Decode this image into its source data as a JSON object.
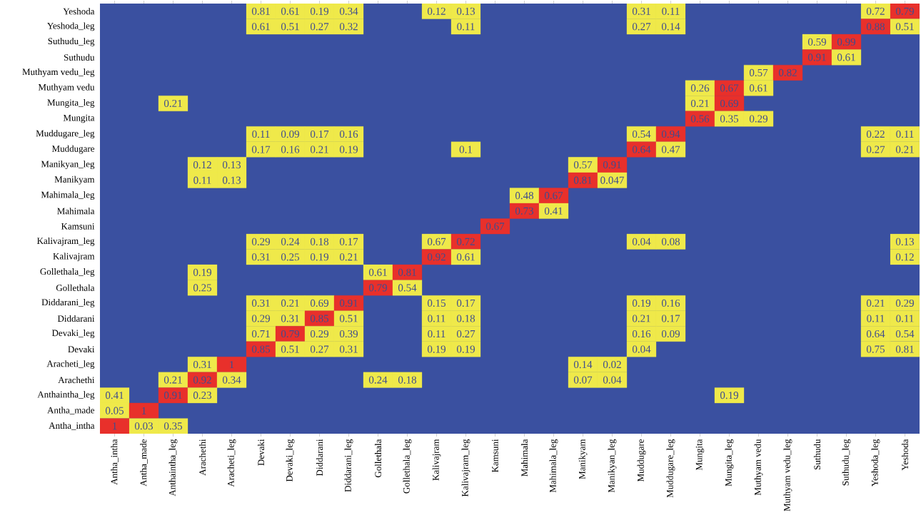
{
  "chart_data": {
    "type": "heatmap",
    "categories": [
      "Antha_intha",
      "Antha_made",
      "Anthaintha_leg",
      "Arachethi",
      "Aracheti_leg",
      "Devaki",
      "Devaki_leg",
      "Diddarani",
      "Diddarani_leg",
      "Gollethala",
      "Gollethala_leg",
      "Kalivajram",
      "Kalivajram_leg",
      "Kamsuni",
      "Mahimala",
      "Mahimala_leg",
      "Manikyam",
      "Manikyan_leg",
      "Muddugare",
      "Muddugare_leg",
      "Mungita",
      "Mungita_leg",
      "Muthyam vedu",
      "Muthyam vedu_leg",
      "Suthudu",
      "Suthudu_leg",
      "Yeshoda_leg",
      "Yeshoda"
    ],
    "y_categories": [
      "Yeshoda",
      "Yeshoda_leg",
      "Suthudu_leg",
      "Suthudu",
      "Muthyam vedu_leg",
      "Muthyam vedu",
      "Mungita_leg",
      "Mungita",
      "Muddugare_leg",
      "Muddugare",
      "Manikyan_leg",
      "Manikyam",
      "Mahimala_leg",
      "Mahimala",
      "Kamsuni",
      "Kalivajram_leg",
      "Kalivajram",
      "Gollethala_leg",
      "Gollethala",
      "Diddarani_leg",
      "Diddarani",
      "Devaki_leg",
      "Devaki",
      "Aracheti_leg",
      "Arachethi",
      "Anthaintha_leg",
      "Antha_made",
      "Antha_intha"
    ],
    "cells": [
      [
        null,
        null,
        null,
        null,
        null,
        0.81,
        0.61,
        0.19,
        0.34,
        null,
        null,
        0.12,
        0.13,
        null,
        null,
        null,
        null,
        null,
        0.31,
        0.11,
        null,
        null,
        null,
        null,
        null,
        null,
        0.72,
        0.79
      ],
      [
        null,
        null,
        null,
        null,
        null,
        0.61,
        0.51,
        0.27,
        0.32,
        null,
        null,
        null,
        0.11,
        null,
        null,
        null,
        null,
        null,
        0.27,
        0.14,
        null,
        null,
        null,
        null,
        null,
        null,
        0.88,
        0.51
      ],
      [
        null,
        null,
        null,
        null,
        null,
        null,
        null,
        null,
        null,
        null,
        null,
        null,
        null,
        null,
        null,
        null,
        null,
        null,
        null,
        null,
        null,
        null,
        null,
        null,
        0.59,
        0.99,
        null,
        null
      ],
      [
        null,
        null,
        null,
        null,
        null,
        null,
        null,
        null,
        null,
        null,
        null,
        null,
        null,
        null,
        null,
        null,
        null,
        null,
        null,
        null,
        null,
        null,
        null,
        null,
        0.91,
        0.61,
        null,
        null
      ],
      [
        null,
        null,
        null,
        null,
        null,
        null,
        null,
        null,
        null,
        null,
        null,
        null,
        null,
        null,
        null,
        null,
        null,
        null,
        null,
        null,
        null,
        null,
        0.57,
        0.82,
        null,
        null,
        null,
        null
      ],
      [
        null,
        null,
        null,
        null,
        null,
        null,
        null,
        null,
        null,
        null,
        null,
        null,
        null,
        null,
        null,
        null,
        null,
        null,
        null,
        null,
        0.26,
        0.67,
        0.61,
        null,
        null,
        null,
        null,
        null
      ],
      [
        null,
        null,
        0.21,
        null,
        null,
        null,
        null,
        null,
        null,
        null,
        null,
        null,
        null,
        null,
        null,
        null,
        null,
        null,
        null,
        null,
        0.21,
        0.69,
        null,
        null,
        null,
        null,
        null,
        null
      ],
      [
        null,
        null,
        null,
        null,
        null,
        null,
        null,
        null,
        null,
        null,
        null,
        null,
        null,
        null,
        null,
        null,
        null,
        null,
        null,
        null,
        0.56,
        0.35,
        0.29,
        null,
        null,
        null,
        null,
        null
      ],
      [
        null,
        null,
        null,
        null,
        null,
        0.11,
        0.09,
        0.17,
        0.16,
        null,
        null,
        null,
        null,
        null,
        null,
        null,
        null,
        null,
        0.54,
        0.94,
        null,
        null,
        null,
        null,
        null,
        null,
        0.22,
        0.11
      ],
      [
        null,
        null,
        null,
        null,
        null,
        0.17,
        0.16,
        0.21,
        0.19,
        null,
        null,
        null,
        0.1,
        null,
        null,
        null,
        null,
        null,
        0.64,
        0.47,
        null,
        null,
        null,
        null,
        null,
        null,
        0.27,
        0.21
      ],
      [
        null,
        null,
        null,
        0.12,
        0.13,
        null,
        null,
        null,
        null,
        null,
        null,
        null,
        null,
        null,
        null,
        null,
        0.57,
        0.91,
        null,
        null,
        null,
        null,
        null,
        null,
        null,
        null,
        null,
        null
      ],
      [
        null,
        null,
        null,
        0.11,
        0.13,
        null,
        null,
        null,
        null,
        null,
        null,
        null,
        null,
        null,
        null,
        null,
        0.81,
        0.047,
        null,
        null,
        null,
        null,
        null,
        null,
        null,
        null,
        null,
        null
      ],
      [
        null,
        null,
        null,
        null,
        null,
        null,
        null,
        null,
        null,
        null,
        null,
        null,
        null,
        null,
        0.48,
        0.67,
        null,
        null,
        null,
        null,
        null,
        null,
        null,
        null,
        null,
        null,
        null,
        null
      ],
      [
        null,
        null,
        null,
        null,
        null,
        null,
        null,
        null,
        null,
        null,
        null,
        null,
        null,
        null,
        0.73,
        0.41,
        null,
        null,
        null,
        null,
        null,
        null,
        null,
        null,
        null,
        null,
        null,
        null
      ],
      [
        null,
        null,
        null,
        null,
        null,
        null,
        null,
        null,
        null,
        null,
        null,
        null,
        null,
        0.67,
        null,
        null,
        null,
        null,
        null,
        null,
        null,
        null,
        null,
        null,
        null,
        null,
        null,
        null
      ],
      [
        null,
        null,
        null,
        null,
        null,
        0.29,
        0.24,
        0.18,
        0.17,
        null,
        null,
        0.67,
        0.72,
        null,
        null,
        null,
        null,
        null,
        0.04,
        0.08,
        null,
        null,
        null,
        null,
        null,
        null,
        null,
        0.13
      ],
      [
        null,
        null,
        null,
        null,
        null,
        0.31,
        0.25,
        0.19,
        0.21,
        null,
        null,
        0.92,
        0.61,
        null,
        null,
        null,
        null,
        null,
        null,
        null,
        null,
        null,
        null,
        null,
        null,
        null,
        null,
        0.12
      ],
      [
        null,
        null,
        null,
        0.19,
        null,
        null,
        null,
        null,
        null,
        0.61,
        0.81,
        null,
        null,
        null,
        null,
        null,
        null,
        null,
        null,
        null,
        null,
        null,
        null,
        null,
        null,
        null,
        null,
        null
      ],
      [
        null,
        null,
        null,
        0.25,
        null,
        null,
        null,
        null,
        null,
        0.79,
        0.54,
        null,
        null,
        null,
        null,
        null,
        null,
        null,
        null,
        null,
        null,
        null,
        null,
        null,
        null,
        null,
        null,
        null
      ],
      [
        null,
        null,
        null,
        null,
        null,
        0.31,
        0.21,
        0.69,
        0.91,
        null,
        null,
        0.15,
        0.17,
        null,
        null,
        null,
        null,
        null,
        0.19,
        0.16,
        null,
        null,
        null,
        null,
        null,
        null,
        0.21,
        0.29
      ],
      [
        null,
        null,
        null,
        null,
        null,
        0.29,
        0.31,
        0.85,
        0.51,
        null,
        null,
        0.11,
        0.18,
        null,
        null,
        null,
        null,
        null,
        0.21,
        0.17,
        null,
        null,
        null,
        null,
        null,
        null,
        0.11,
        0.11
      ],
      [
        null,
        null,
        null,
        null,
        null,
        0.71,
        0.79,
        0.29,
        0.39,
        null,
        null,
        0.11,
        0.27,
        null,
        null,
        null,
        null,
        null,
        0.16,
        0.09,
        null,
        null,
        null,
        null,
        null,
        null,
        0.64,
        0.54
      ],
      [
        null,
        null,
        null,
        null,
        null,
        0.85,
        0.51,
        0.27,
        0.31,
        null,
        null,
        0.19,
        0.19,
        null,
        null,
        null,
        null,
        null,
        0.04,
        null,
        null,
        null,
        null,
        null,
        null,
        null,
        0.75,
        0.81
      ],
      [
        null,
        null,
        null,
        0.31,
        1,
        null,
        null,
        null,
        null,
        null,
        null,
        null,
        null,
        null,
        null,
        null,
        0.14,
        0.02,
        null,
        null,
        null,
        null,
        null,
        null,
        null,
        null,
        null,
        null
      ],
      [
        null,
        null,
        0.21,
        0.92,
        0.34,
        null,
        null,
        null,
        null,
        0.24,
        0.18,
        null,
        null,
        null,
        null,
        null,
        0.07,
        0.04,
        null,
        null,
        null,
        null,
        null,
        null,
        null,
        null,
        null,
        null
      ],
      [
        0.41,
        null,
        0.91,
        0.23,
        null,
        null,
        null,
        null,
        null,
        null,
        null,
        null,
        null,
        null,
        null,
        null,
        null,
        null,
        null,
        null,
        null,
        0.19,
        null,
        null,
        null,
        null,
        null,
        null
      ],
      [
        0.05,
        1,
        null,
        null,
        null,
        null,
        null,
        null,
        null,
        null,
        null,
        null,
        null,
        null,
        null,
        null,
        null,
        null,
        null,
        null,
        null,
        null,
        null,
        null,
        null,
        null,
        null,
        null
      ],
      [
        1,
        0.03,
        0.35,
        null,
        null,
        null,
        null,
        null,
        null,
        null,
        null,
        null,
        null,
        null,
        null,
        null,
        null,
        null,
        null,
        null,
        null,
        null,
        null,
        null,
        null,
        null,
        null,
        null
      ]
    ],
    "colors": [
      [
        "#3a50a0",
        "#3a50a0",
        "#3a50a0",
        "#3a50a0",
        "#3a50a0",
        "#efe94a",
        "#efe94a",
        "#efe94a",
        "#efe94a",
        "#3a50a0",
        "#3a50a0",
        "#efe94a",
        "#efe94a",
        "#3a50a0",
        "#3a50a0",
        "#3a50a0",
        "#3a50a0",
        "#3a50a0",
        "#efe94a",
        "#efe94a",
        "#3a50a0",
        "#3a50a0",
        "#3a50a0",
        "#3a50a0",
        "#3a50a0",
        "#3a50a0",
        "#efe94a",
        "#e8302b"
      ],
      [
        "#3a50a0",
        "#3a50a0",
        "#3a50a0",
        "#3a50a0",
        "#3a50a0",
        "#efe94a",
        "#efe94a",
        "#efe94a",
        "#efe94a",
        "#3a50a0",
        "#3a50a0",
        "#3a50a0",
        "#efe94a",
        "#3a50a0",
        "#3a50a0",
        "#3a50a0",
        "#3a50a0",
        "#3a50a0",
        "#efe94a",
        "#efe94a",
        "#3a50a0",
        "#3a50a0",
        "#3a50a0",
        "#3a50a0",
        "#3a50a0",
        "#3a50a0",
        "#e8302b",
        "#efe94a"
      ],
      [
        "#3a50a0",
        "#3a50a0",
        "#3a50a0",
        "#3a50a0",
        "#3a50a0",
        "#3a50a0",
        "#3a50a0",
        "#3a50a0",
        "#3a50a0",
        "#3a50a0",
        "#3a50a0",
        "#3a50a0",
        "#3a50a0",
        "#3a50a0",
        "#3a50a0",
        "#3a50a0",
        "#3a50a0",
        "#3a50a0",
        "#3a50a0",
        "#3a50a0",
        "#3a50a0",
        "#3a50a0",
        "#3a50a0",
        "#3a50a0",
        "#efe94a",
        "#e8302b",
        "#3a50a0",
        "#3a50a0"
      ],
      [
        "#3a50a0",
        "#3a50a0",
        "#3a50a0",
        "#3a50a0",
        "#3a50a0",
        "#3a50a0",
        "#3a50a0",
        "#3a50a0",
        "#3a50a0",
        "#3a50a0",
        "#3a50a0",
        "#3a50a0",
        "#3a50a0",
        "#3a50a0",
        "#3a50a0",
        "#3a50a0",
        "#3a50a0",
        "#3a50a0",
        "#3a50a0",
        "#3a50a0",
        "#3a50a0",
        "#3a50a0",
        "#3a50a0",
        "#3a50a0",
        "#e8302b",
        "#efe94a",
        "#3a50a0",
        "#3a50a0"
      ],
      [
        "#3a50a0",
        "#3a50a0",
        "#3a50a0",
        "#3a50a0",
        "#3a50a0",
        "#3a50a0",
        "#3a50a0",
        "#3a50a0",
        "#3a50a0",
        "#3a50a0",
        "#3a50a0",
        "#3a50a0",
        "#3a50a0",
        "#3a50a0",
        "#3a50a0",
        "#3a50a0",
        "#3a50a0",
        "#3a50a0",
        "#3a50a0",
        "#3a50a0",
        "#3a50a0",
        "#3a50a0",
        "#efe94a",
        "#e8302b",
        "#3a50a0",
        "#3a50a0",
        "#3a50a0",
        "#3a50a0"
      ],
      [
        "#3a50a0",
        "#3a50a0",
        "#3a50a0",
        "#3a50a0",
        "#3a50a0",
        "#3a50a0",
        "#3a50a0",
        "#3a50a0",
        "#3a50a0",
        "#3a50a0",
        "#3a50a0",
        "#3a50a0",
        "#3a50a0",
        "#3a50a0",
        "#3a50a0",
        "#3a50a0",
        "#3a50a0",
        "#3a50a0",
        "#3a50a0",
        "#3a50a0",
        "#efe94a",
        "#e8302b",
        "#efe94a",
        "#3a50a0",
        "#3a50a0",
        "#3a50a0",
        "#3a50a0",
        "#3a50a0"
      ],
      [
        "#3a50a0",
        "#3a50a0",
        "#efe94a",
        "#3a50a0",
        "#3a50a0",
        "#3a50a0",
        "#3a50a0",
        "#3a50a0",
        "#3a50a0",
        "#3a50a0",
        "#3a50a0",
        "#3a50a0",
        "#3a50a0",
        "#3a50a0",
        "#3a50a0",
        "#3a50a0",
        "#3a50a0",
        "#3a50a0",
        "#3a50a0",
        "#3a50a0",
        "#efe94a",
        "#e8302b",
        "#3a50a0",
        "#3a50a0",
        "#3a50a0",
        "#3a50a0",
        "#3a50a0",
        "#3a50a0"
      ],
      [
        "#3a50a0",
        "#3a50a0",
        "#3a50a0",
        "#3a50a0",
        "#3a50a0",
        "#3a50a0",
        "#3a50a0",
        "#3a50a0",
        "#3a50a0",
        "#3a50a0",
        "#3a50a0",
        "#3a50a0",
        "#3a50a0",
        "#3a50a0",
        "#3a50a0",
        "#3a50a0",
        "#3a50a0",
        "#3a50a0",
        "#3a50a0",
        "#3a50a0",
        "#e8302b",
        "#efe94a",
        "#efe94a",
        "#3a50a0",
        "#3a50a0",
        "#3a50a0",
        "#3a50a0",
        "#3a50a0"
      ],
      [
        "#3a50a0",
        "#3a50a0",
        "#3a50a0",
        "#3a50a0",
        "#3a50a0",
        "#efe94a",
        "#efe94a",
        "#efe94a",
        "#efe94a",
        "#3a50a0",
        "#3a50a0",
        "#3a50a0",
        "#3a50a0",
        "#3a50a0",
        "#3a50a0",
        "#3a50a0",
        "#3a50a0",
        "#3a50a0",
        "#efe94a",
        "#e8302b",
        "#3a50a0",
        "#3a50a0",
        "#3a50a0",
        "#3a50a0",
        "#3a50a0",
        "#3a50a0",
        "#efe94a",
        "#efe94a"
      ],
      [
        "#3a50a0",
        "#3a50a0",
        "#3a50a0",
        "#3a50a0",
        "#3a50a0",
        "#efe94a",
        "#efe94a",
        "#efe94a",
        "#efe94a",
        "#3a50a0",
        "#3a50a0",
        "#3a50a0",
        "#efe94a",
        "#3a50a0",
        "#3a50a0",
        "#3a50a0",
        "#3a50a0",
        "#3a50a0",
        "#e8302b",
        "#efe94a",
        "#3a50a0",
        "#3a50a0",
        "#3a50a0",
        "#3a50a0",
        "#3a50a0",
        "#3a50a0",
        "#efe94a",
        "#efe94a"
      ],
      [
        "#3a50a0",
        "#3a50a0",
        "#3a50a0",
        "#efe94a",
        "#efe94a",
        "#3a50a0",
        "#3a50a0",
        "#3a50a0",
        "#3a50a0",
        "#3a50a0",
        "#3a50a0",
        "#3a50a0",
        "#3a50a0",
        "#3a50a0",
        "#3a50a0",
        "#3a50a0",
        "#efe94a",
        "#e8302b",
        "#3a50a0",
        "#3a50a0",
        "#3a50a0",
        "#3a50a0",
        "#3a50a0",
        "#3a50a0",
        "#3a50a0",
        "#3a50a0",
        "#3a50a0",
        "#3a50a0"
      ],
      [
        "#3a50a0",
        "#3a50a0",
        "#3a50a0",
        "#efe94a",
        "#efe94a",
        "#3a50a0",
        "#3a50a0",
        "#3a50a0",
        "#3a50a0",
        "#3a50a0",
        "#3a50a0",
        "#3a50a0",
        "#3a50a0",
        "#3a50a0",
        "#3a50a0",
        "#3a50a0",
        "#e8302b",
        "#efe94a",
        "#3a50a0",
        "#3a50a0",
        "#3a50a0",
        "#3a50a0",
        "#3a50a0",
        "#3a50a0",
        "#3a50a0",
        "#3a50a0",
        "#3a50a0",
        "#3a50a0"
      ],
      [
        "#3a50a0",
        "#3a50a0",
        "#3a50a0",
        "#3a50a0",
        "#3a50a0",
        "#3a50a0",
        "#3a50a0",
        "#3a50a0",
        "#3a50a0",
        "#3a50a0",
        "#3a50a0",
        "#3a50a0",
        "#3a50a0",
        "#3a50a0",
        "#efe94a",
        "#e8302b",
        "#3a50a0",
        "#3a50a0",
        "#3a50a0",
        "#3a50a0",
        "#3a50a0",
        "#3a50a0",
        "#3a50a0",
        "#3a50a0",
        "#3a50a0",
        "#3a50a0",
        "#3a50a0",
        "#3a50a0"
      ],
      [
        "#3a50a0",
        "#3a50a0",
        "#3a50a0",
        "#3a50a0",
        "#3a50a0",
        "#3a50a0",
        "#3a50a0",
        "#3a50a0",
        "#3a50a0",
        "#3a50a0",
        "#3a50a0",
        "#3a50a0",
        "#3a50a0",
        "#3a50a0",
        "#e8302b",
        "#efe94a",
        "#3a50a0",
        "#3a50a0",
        "#3a50a0",
        "#3a50a0",
        "#3a50a0",
        "#3a50a0",
        "#3a50a0",
        "#3a50a0",
        "#3a50a0",
        "#3a50a0",
        "#3a50a0",
        "#3a50a0"
      ],
      [
        "#3a50a0",
        "#3a50a0",
        "#3a50a0",
        "#3a50a0",
        "#3a50a0",
        "#3a50a0",
        "#3a50a0",
        "#3a50a0",
        "#3a50a0",
        "#3a50a0",
        "#3a50a0",
        "#3a50a0",
        "#3a50a0",
        "#e8302b",
        "#3a50a0",
        "#3a50a0",
        "#3a50a0",
        "#3a50a0",
        "#3a50a0",
        "#3a50a0",
        "#3a50a0",
        "#3a50a0",
        "#3a50a0",
        "#3a50a0",
        "#3a50a0",
        "#3a50a0",
        "#3a50a0",
        "#3a50a0"
      ],
      [
        "#3a50a0",
        "#3a50a0",
        "#3a50a0",
        "#3a50a0",
        "#3a50a0",
        "#efe94a",
        "#efe94a",
        "#efe94a",
        "#efe94a",
        "#3a50a0",
        "#3a50a0",
        "#efe94a",
        "#e8302b",
        "#3a50a0",
        "#3a50a0",
        "#3a50a0",
        "#3a50a0",
        "#3a50a0",
        "#efe94a",
        "#efe94a",
        "#3a50a0",
        "#3a50a0",
        "#3a50a0",
        "#3a50a0",
        "#3a50a0",
        "#3a50a0",
        "#3a50a0",
        "#efe94a"
      ],
      [
        "#3a50a0",
        "#3a50a0",
        "#3a50a0",
        "#3a50a0",
        "#3a50a0",
        "#efe94a",
        "#efe94a",
        "#efe94a",
        "#efe94a",
        "#3a50a0",
        "#3a50a0",
        "#e8302b",
        "#efe94a",
        "#3a50a0",
        "#3a50a0",
        "#3a50a0",
        "#3a50a0",
        "#3a50a0",
        "#3a50a0",
        "#3a50a0",
        "#3a50a0",
        "#3a50a0",
        "#3a50a0",
        "#3a50a0",
        "#3a50a0",
        "#3a50a0",
        "#3a50a0",
        "#efe94a"
      ],
      [
        "#3a50a0",
        "#3a50a0",
        "#3a50a0",
        "#efe94a",
        "#3a50a0",
        "#3a50a0",
        "#3a50a0",
        "#3a50a0",
        "#3a50a0",
        "#efe94a",
        "#e8302b",
        "#3a50a0",
        "#3a50a0",
        "#3a50a0",
        "#3a50a0",
        "#3a50a0",
        "#3a50a0",
        "#3a50a0",
        "#3a50a0",
        "#3a50a0",
        "#3a50a0",
        "#3a50a0",
        "#3a50a0",
        "#3a50a0",
        "#3a50a0",
        "#3a50a0",
        "#3a50a0",
        "#3a50a0"
      ],
      [
        "#3a50a0",
        "#3a50a0",
        "#3a50a0",
        "#efe94a",
        "#3a50a0",
        "#3a50a0",
        "#3a50a0",
        "#3a50a0",
        "#3a50a0",
        "#e8302b",
        "#efe94a",
        "#3a50a0",
        "#3a50a0",
        "#3a50a0",
        "#3a50a0",
        "#3a50a0",
        "#3a50a0",
        "#3a50a0",
        "#3a50a0",
        "#3a50a0",
        "#3a50a0",
        "#3a50a0",
        "#3a50a0",
        "#3a50a0",
        "#3a50a0",
        "#3a50a0",
        "#3a50a0",
        "#3a50a0"
      ],
      [
        "#3a50a0",
        "#3a50a0",
        "#3a50a0",
        "#3a50a0",
        "#3a50a0",
        "#efe94a",
        "#efe94a",
        "#efe94a",
        "#e8302b",
        "#3a50a0",
        "#3a50a0",
        "#efe94a",
        "#efe94a",
        "#3a50a0",
        "#3a50a0",
        "#3a50a0",
        "#3a50a0",
        "#3a50a0",
        "#efe94a",
        "#efe94a",
        "#3a50a0",
        "#3a50a0",
        "#3a50a0",
        "#3a50a0",
        "#3a50a0",
        "#3a50a0",
        "#efe94a",
        "#efe94a"
      ],
      [
        "#3a50a0",
        "#3a50a0",
        "#3a50a0",
        "#3a50a0",
        "#3a50a0",
        "#efe94a",
        "#efe94a",
        "#e8302b",
        "#efe94a",
        "#3a50a0",
        "#3a50a0",
        "#efe94a",
        "#efe94a",
        "#3a50a0",
        "#3a50a0",
        "#3a50a0",
        "#3a50a0",
        "#3a50a0",
        "#efe94a",
        "#efe94a",
        "#3a50a0",
        "#3a50a0",
        "#3a50a0",
        "#3a50a0",
        "#3a50a0",
        "#3a50a0",
        "#efe94a",
        "#efe94a"
      ],
      [
        "#3a50a0",
        "#3a50a0",
        "#3a50a0",
        "#3a50a0",
        "#3a50a0",
        "#efe94a",
        "#e8302b",
        "#efe94a",
        "#efe94a",
        "#3a50a0",
        "#3a50a0",
        "#efe94a",
        "#efe94a",
        "#3a50a0",
        "#3a50a0",
        "#3a50a0",
        "#3a50a0",
        "#3a50a0",
        "#efe94a",
        "#efe94a",
        "#3a50a0",
        "#3a50a0",
        "#3a50a0",
        "#3a50a0",
        "#3a50a0",
        "#3a50a0",
        "#efe94a",
        "#efe94a"
      ],
      [
        "#3a50a0",
        "#3a50a0",
        "#3a50a0",
        "#3a50a0",
        "#3a50a0",
        "#e8302b",
        "#efe94a",
        "#efe94a",
        "#efe94a",
        "#3a50a0",
        "#3a50a0",
        "#efe94a",
        "#efe94a",
        "#3a50a0",
        "#3a50a0",
        "#3a50a0",
        "#3a50a0",
        "#3a50a0",
        "#efe94a",
        "#3a50a0",
        "#3a50a0",
        "#3a50a0",
        "#3a50a0",
        "#3a50a0",
        "#3a50a0",
        "#3a50a0",
        "#efe94a",
        "#efe94a"
      ],
      [
        "#3a50a0",
        "#3a50a0",
        "#3a50a0",
        "#efe94a",
        "#e8302b",
        "#3a50a0",
        "#3a50a0",
        "#3a50a0",
        "#3a50a0",
        "#3a50a0",
        "#3a50a0",
        "#3a50a0",
        "#3a50a0",
        "#3a50a0",
        "#3a50a0",
        "#3a50a0",
        "#efe94a",
        "#efe94a",
        "#3a50a0",
        "#3a50a0",
        "#3a50a0",
        "#3a50a0",
        "#3a50a0",
        "#3a50a0",
        "#3a50a0",
        "#3a50a0",
        "#3a50a0",
        "#3a50a0"
      ],
      [
        "#3a50a0",
        "#3a50a0",
        "#efe94a",
        "#e8302b",
        "#efe94a",
        "#3a50a0",
        "#3a50a0",
        "#3a50a0",
        "#3a50a0",
        "#efe94a",
        "#efe94a",
        "#3a50a0",
        "#3a50a0",
        "#3a50a0",
        "#3a50a0",
        "#3a50a0",
        "#efe94a",
        "#efe94a",
        "#3a50a0",
        "#3a50a0",
        "#3a50a0",
        "#3a50a0",
        "#3a50a0",
        "#3a50a0",
        "#3a50a0",
        "#3a50a0",
        "#3a50a0",
        "#3a50a0"
      ],
      [
        "#efe94a",
        "#3a50a0",
        "#e8302b",
        "#efe94a",
        "#3a50a0",
        "#3a50a0",
        "#3a50a0",
        "#3a50a0",
        "#3a50a0",
        "#3a50a0",
        "#3a50a0",
        "#3a50a0",
        "#3a50a0",
        "#3a50a0",
        "#3a50a0",
        "#3a50a0",
        "#3a50a0",
        "#3a50a0",
        "#3a50a0",
        "#3a50a0",
        "#3a50a0",
        "#efe94a",
        "#3a50a0",
        "#3a50a0",
        "#3a50a0",
        "#3a50a0",
        "#3a50a0",
        "#3a50a0"
      ],
      [
        "#efe94a",
        "#e8302b",
        "#3a50a0",
        "#3a50a0",
        "#3a50a0",
        "#3a50a0",
        "#3a50a0",
        "#3a50a0",
        "#3a50a0",
        "#3a50a0",
        "#3a50a0",
        "#3a50a0",
        "#3a50a0",
        "#3a50a0",
        "#3a50a0",
        "#3a50a0",
        "#3a50a0",
        "#3a50a0",
        "#3a50a0",
        "#3a50a0",
        "#3a50a0",
        "#3a50a0",
        "#3a50a0",
        "#3a50a0",
        "#3a50a0",
        "#3a50a0",
        "#3a50a0",
        "#3a50a0"
      ],
      [
        "#e8302b",
        "#efe94a",
        "#efe94a",
        "#3a50a0",
        "#3a50a0",
        "#3a50a0",
        "#3a50a0",
        "#3a50a0",
        "#3a50a0",
        "#3a50a0",
        "#3a50a0",
        "#3a50a0",
        "#3a50a0",
        "#3a50a0",
        "#3a50a0",
        "#3a50a0",
        "#3a50a0",
        "#3a50a0",
        "#3a50a0",
        "#3a50a0",
        "#3a50a0",
        "#3a50a0",
        "#3a50a0",
        "#3a50a0",
        "#3a50a0",
        "#3a50a0",
        "#3a50a0",
        "#3a50a0"
      ]
    ],
    "data_labels": true
  }
}
